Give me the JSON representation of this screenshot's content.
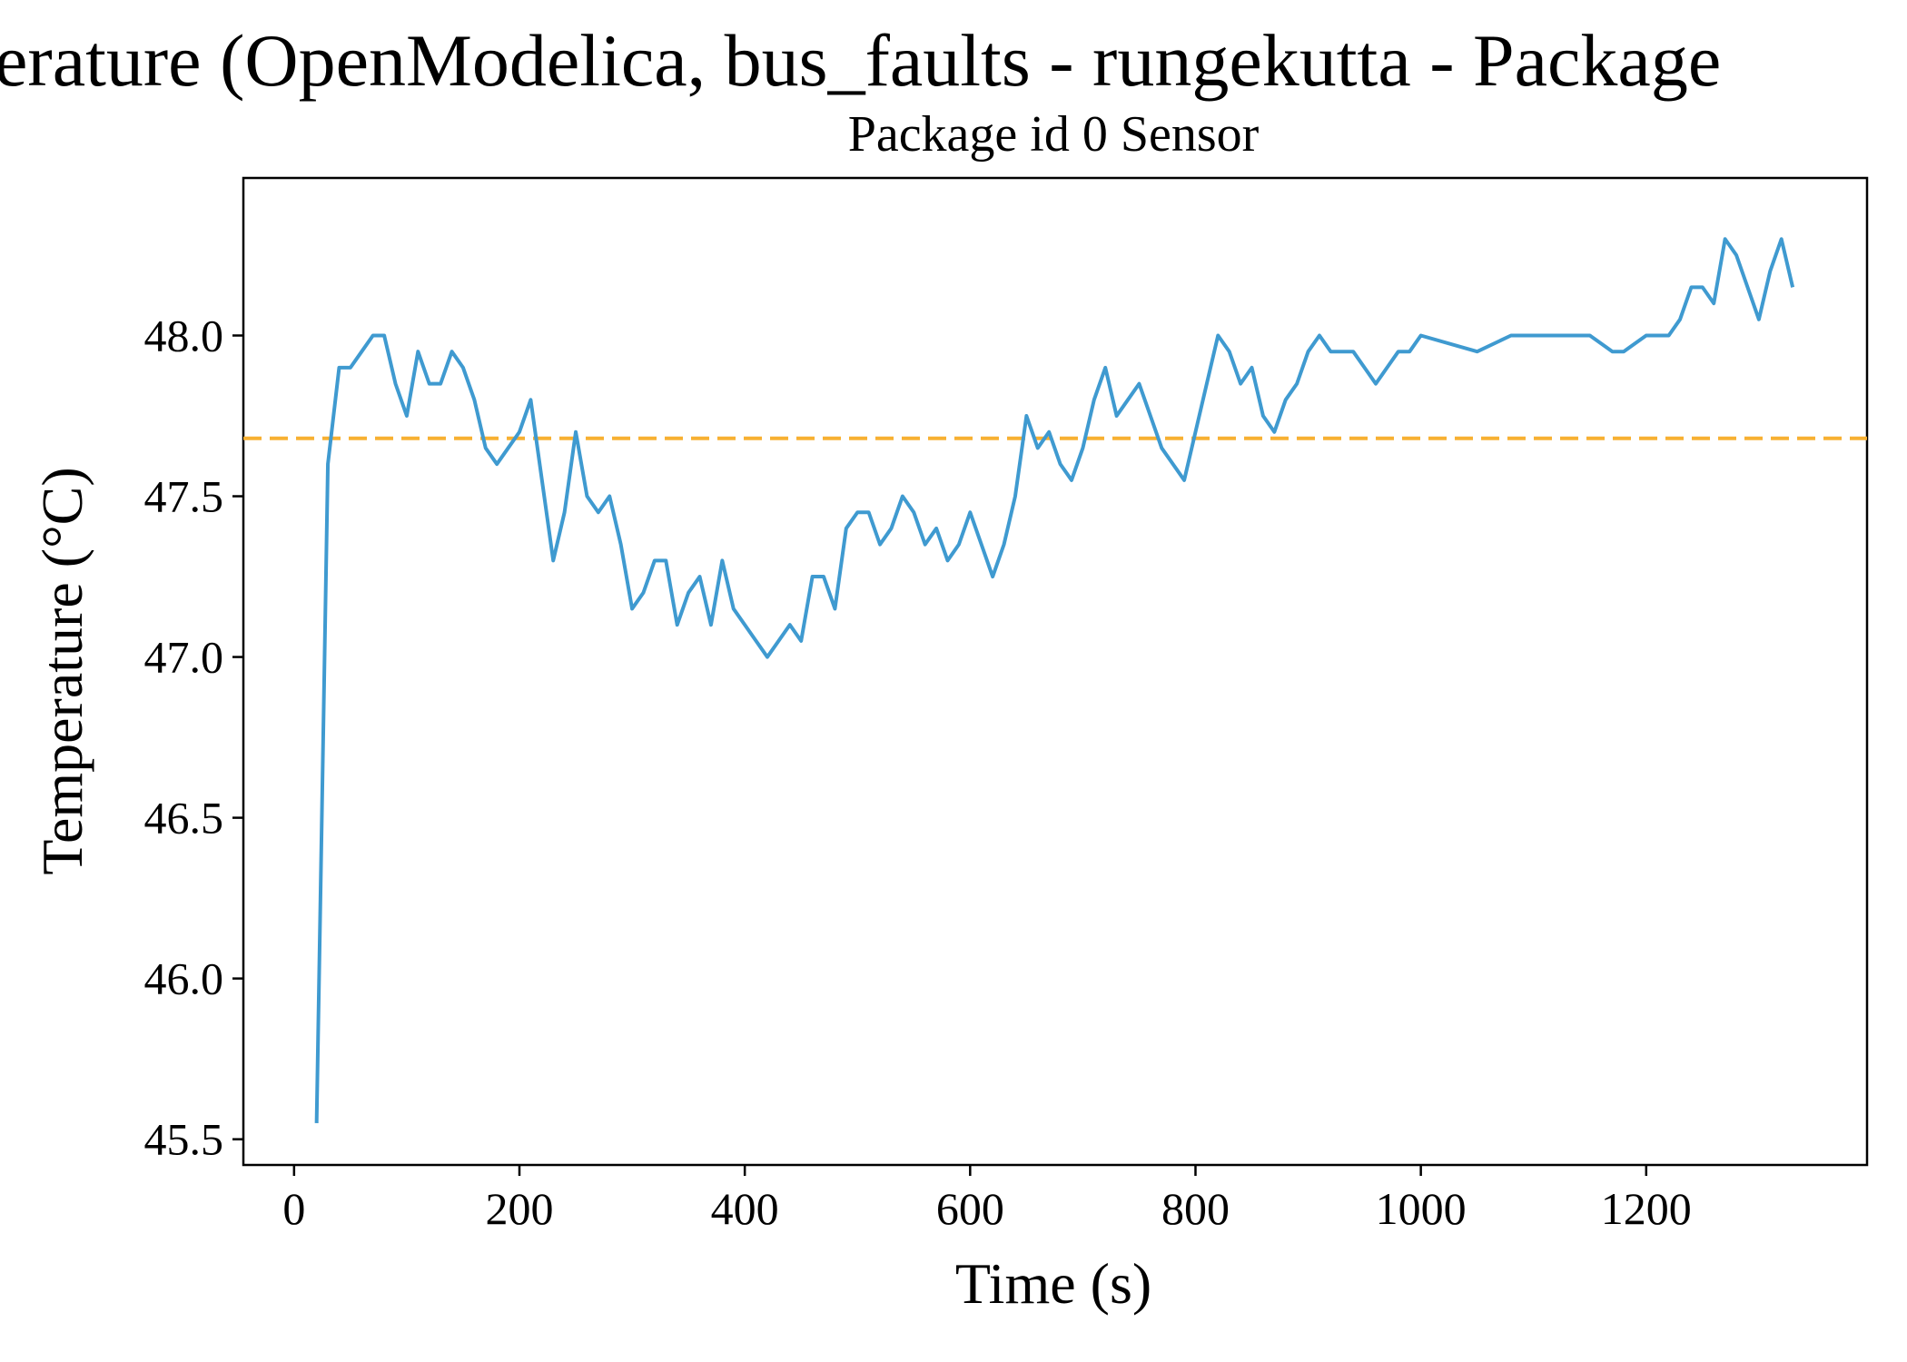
{
  "chart_data": {
    "type": "line",
    "title": "erature (OpenModelica, bus_faults - rungekutta - Package",
    "subtitle": "Package id 0 Sensor",
    "x_label": "Time (s)",
    "y_label": "Temperature (°C)",
    "xlim": [
      -45,
      1396
    ],
    "ylim": [
      45.42,
      48.49
    ],
    "xticks": [
      0,
      200,
      400,
      600,
      800,
      1000,
      1200
    ],
    "yticks": [
      {
        "value": 45.5,
        "label": "45.5"
      },
      {
        "value": 46,
        "label": "46.0"
      },
      {
        "value": 46.5,
        "label": "46.5"
      },
      {
        "value": 47,
        "label": "47.0"
      },
      {
        "value": 47.5,
        "label": "47.5"
      },
      {
        "value": 48,
        "label": "48.0"
      }
    ],
    "reference_line": {
      "value": 47.68,
      "color": "#f7b032"
    },
    "grid": false,
    "series": [
      {
        "color": "#3f9ad0",
        "x": [
          20,
          30,
          40,
          50,
          60,
          70,
          80,
          90,
          100,
          110,
          120,
          130,
          140,
          150,
          160,
          170,
          180,
          190,
          200,
          210,
          220,
          230,
          240,
          250,
          260,
          270,
          280,
          290,
          300,
          310,
          320,
          330,
          340,
          350,
          360,
          370,
          380,
          390,
          400,
          410,
          420,
          430,
          440,
          450,
          460,
          470,
          480,
          490,
          500,
          510,
          520,
          530,
          540,
          550,
          560,
          570,
          580,
          590,
          600,
          610,
          620,
          630,
          640,
          650,
          660,
          670,
          680,
          690,
          700,
          710,
          720,
          730,
          740,
          750,
          760,
          770,
          780,
          790,
          800,
          810,
          820,
          830,
          840,
          850,
          860,
          870,
          880,
          890,
          900,
          910,
          920,
          930,
          940,
          950,
          960,
          970,
          980,
          990,
          1000,
          1050,
          1080,
          1100,
          1150,
          1170,
          1180,
          1200,
          1220,
          1230,
          1240,
          1250,
          1260,
          1270,
          1280,
          1290,
          1300,
          1310,
          1320,
          1330
        ],
        "values": [
          45.55,
          47.6,
          47.9,
          47.9,
          47.95,
          48.0,
          48.0,
          47.85,
          47.75,
          47.95,
          47.85,
          47.85,
          47.95,
          47.9,
          47.8,
          47.65,
          47.6,
          47.65,
          47.7,
          47.8,
          47.55,
          47.3,
          47.45,
          47.7,
          47.5,
          47.45,
          47.5,
          47.35,
          47.15,
          47.2,
          47.3,
          47.3,
          47.1,
          47.2,
          47.25,
          47.1,
          47.3,
          47.15,
          47.1,
          47.05,
          47.0,
          47.05,
          47.1,
          47.05,
          47.25,
          47.25,
          47.15,
          47.4,
          47.45,
          47.45,
          47.35,
          47.4,
          47.5,
          47.45,
          47.35,
          47.4,
          47.3,
          47.35,
          47.45,
          47.35,
          47.25,
          47.35,
          47.5,
          47.75,
          47.65,
          47.7,
          47.6,
          47.55,
          47.65,
          47.8,
          47.9,
          47.75,
          47.8,
          47.85,
          47.75,
          47.65,
          47.6,
          47.55,
          47.7,
          47.85,
          48.0,
          47.95,
          47.85,
          47.9,
          47.75,
          47.7,
          47.8,
          47.85,
          47.95,
          48.0,
          47.95,
          47.95,
          47.95,
          47.9,
          47.85,
          47.9,
          47.95,
          47.95,
          48.0,
          47.95,
          48.0,
          48.0,
          48.0,
          47.95,
          47.95,
          48.0,
          48.0,
          48.05,
          48.15,
          48.15,
          48.1,
          48.3,
          48.25,
          48.15,
          48.05,
          48.2,
          48.3,
          48.15
        ]
      }
    ]
  }
}
